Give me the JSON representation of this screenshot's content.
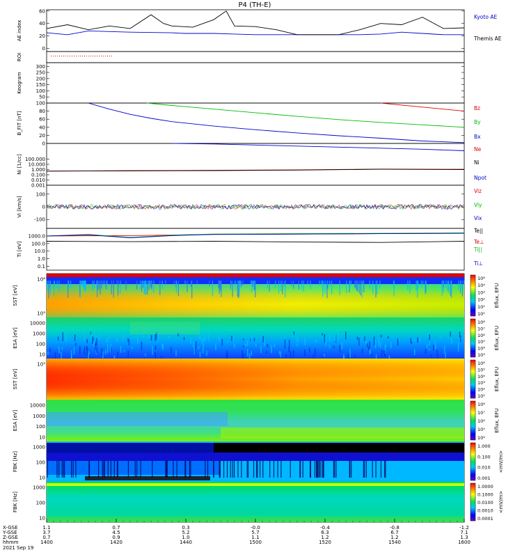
{
  "title": "P4 (TH-E)",
  "colors": {
    "blue": "#0000cc",
    "green": "#00bb00",
    "red": "#dd0000",
    "black": "#000000"
  },
  "chart_data": [
    {
      "type": "line",
      "panel": "ae",
      "ylabel": "AE index",
      "yticks": [
        "0",
        "20",
        "40",
        "60"
      ],
      "ylim": [
        -5,
        62
      ],
      "series": [
        {
          "name": "Kyoto AE",
          "color": "#0000cc",
          "x": [
            0,
            0.05,
            0.1,
            0.15,
            0.2,
            0.3,
            0.33,
            0.4,
            0.45,
            0.5,
            0.55,
            0.6,
            0.65,
            0.7,
            0.75,
            0.8,
            0.85,
            0.9,
            0.95,
            1.0
          ],
          "values": [
            25,
            22,
            28,
            27,
            26,
            25,
            24,
            24,
            23,
            22,
            22,
            22,
            22,
            22,
            22,
            23,
            26,
            24,
            22,
            22
          ]
        },
        {
          "name": "Themis AE",
          "color": "#000000",
          "x": [
            0,
            0.05,
            0.1,
            0.15,
            0.2,
            0.25,
            0.28,
            0.3,
            0.35,
            0.4,
            0.43,
            0.45,
            0.5,
            0.55,
            0.6,
            0.65,
            0.7,
            0.75,
            0.8,
            0.85,
            0.9,
            0.95,
            1.0
          ],
          "values": [
            32,
            38,
            30,
            36,
            32,
            54,
            40,
            36,
            34,
            46,
            60,
            36,
            35,
            30,
            22,
            22,
            22,
            30,
            40,
            38,
            50,
            32,
            33
          ]
        }
      ]
    },
    {
      "type": "line",
      "panel": "roi",
      "ylabel": "ROI",
      "yticks": [],
      "series": []
    },
    {
      "type": "heatmap",
      "panel": "keogram",
      "ylabel": "Keogram",
      "yticks": [
        "50",
        "100",
        "150",
        "200",
        "250",
        "300"
      ]
    },
    {
      "type": "line",
      "panel": "bfield",
      "ylabel": "B_FIT [nT]",
      "yticks": [
        "0",
        "20",
        "40",
        "60",
        "80",
        "100"
      ],
      "ylim": [
        0,
        100
      ],
      "series": [
        {
          "name": "Bz",
          "color": "#dd0000",
          "x": [
            0.8,
            0.85,
            0.9,
            0.95,
            1.0
          ],
          "values": [
            100,
            95,
            90,
            85,
            80
          ]
        },
        {
          "name": "By",
          "color": "#00bb00",
          "x": [
            0.24,
            0.3,
            0.4,
            0.5,
            0.6,
            0.7,
            0.8,
            0.9,
            1.0
          ],
          "values": [
            100,
            94,
            85,
            76,
            67,
            59,
            52,
            46,
            40
          ]
        },
        {
          "name": "Bx",
          "color": "#0000cc",
          "x": [
            0.1,
            0.15,
            0.2,
            0.25,
            0.3,
            0.4,
            0.5,
            0.6,
            0.7,
            0.8,
            0.9,
            1.0
          ],
          "values": [
            100,
            85,
            72,
            62,
            54,
            43,
            34,
            26,
            19,
            13,
            6,
            2
          ]
        }
      ]
    },
    {
      "type": "line",
      "panel": "density",
      "ylabel": "Ni [1/cc]",
      "yticks": [
        "0.001",
        "0.010",
        "0.100",
        "1.000",
        "10.000",
        "100.000"
      ],
      "ylim_log": [
        -3,
        5
      ],
      "series": [
        {
          "name": "Ne",
          "color": "#dd0000",
          "x": [
            0,
            0.2,
            0.4,
            0.6,
            0.8,
            1.0
          ],
          "log_values": [
            -0.3,
            -0.2,
            -0.15,
            -0.05,
            0.1,
            0.05
          ]
        },
        {
          "name": "Ni",
          "color": "#000000",
          "x": [
            0,
            0.2,
            0.4,
            0.6,
            0.8,
            1.0
          ],
          "log_values": [
            -0.3,
            -0.25,
            -0.2,
            -0.1,
            0.05,
            0.0
          ]
        },
        {
          "name": "Npot",
          "color": "#0000cc",
          "x": [
            0.3,
            0.4,
            0.5,
            0.6,
            0.7,
            0.8,
            0.9,
            1.0
          ],
          "log_values": [
            5.0,
            4.9,
            4.7,
            4.5,
            4.3,
            4.1,
            3.9,
            3.6
          ]
        }
      ]
    },
    {
      "type": "line",
      "panel": "velocity",
      "ylabel": "Vi [km/s]",
      "yticks": [
        "-100",
        "0",
        "100"
      ],
      "ylim": [
        -170,
        170
      ],
      "series": [
        {
          "name": "Viz",
          "color": "#dd0000",
          "x": [
            0,
            1
          ],
          "values": [
            0,
            0
          ]
        },
        {
          "name": "Viy",
          "color": "#00bb00",
          "x": [
            0,
            1
          ],
          "values": [
            0,
            0
          ]
        },
        {
          "name": "Vix",
          "color": "#0000cc",
          "x": [
            0,
            1
          ],
          "values": [
            0,
            0
          ]
        }
      ]
    },
    {
      "type": "line",
      "panel": "temperature",
      "ylabel": "Ti [eV]",
      "yticks": [
        "0.1",
        "1.0",
        "10.0",
        "100.0",
        "1000.0"
      ],
      "ylim_log": [
        -1.5,
        4
      ],
      "series": [
        {
          "name": "Te||",
          "color": "#000000",
          "x": [
            0,
            0.2,
            0.4,
            0.6,
            0.8,
            1.0
          ],
          "log_values": [
            2.3,
            2.25,
            2.3,
            2.2,
            2.15,
            2.3
          ]
        },
        {
          "name": "Te⊥",
          "color": "#dd0000",
          "x": [
            0,
            0.2,
            0.4,
            0.6,
            0.8,
            1.0
          ],
          "log_values": [
            3.0,
            3.05,
            3.2,
            3.25,
            3.3,
            3.35
          ]
        },
        {
          "name": "Ti||",
          "color": "#00bb00",
          "x": [
            0,
            0.1,
            0.2,
            0.3,
            0.4,
            0.6,
            0.8,
            1.0
          ],
          "log_values": [
            3.0,
            3.2,
            2.8,
            3.1,
            3.25,
            3.3,
            3.35,
            3.4
          ]
        },
        {
          "name": "Ti⊥",
          "color": "#0000cc",
          "x": [
            0,
            0.1,
            0.2,
            0.3,
            0.4,
            0.6,
            0.8,
            1.0
          ],
          "log_values": [
            3.0,
            3.15,
            2.75,
            3.05,
            3.2,
            3.25,
            3.3,
            3.35
          ]
        }
      ]
    },
    {
      "type": "heatmap",
      "panel": "sst_ion",
      "ylabel": "SST [eV]",
      "yticks": [
        "10⁶",
        "10⁵"
      ],
      "colorbar_label": "Eflux, EFU",
      "colorbar_ticks": [
        "10⁸",
        "10⁴",
        "10³",
        "10²",
        "10¹",
        "10⁰"
      ]
    },
    {
      "type": "heatmap",
      "panel": "esa_ion",
      "ylabel": "ESA [eV]",
      "yticks": [
        "10000",
        "1000",
        "100",
        "10"
      ],
      "colorbar_label": "Eflux, EFU",
      "colorbar_ticks": [
        "10⁸",
        "10⁷",
        "10⁶",
        "10⁵",
        "10⁴",
        "10³"
      ]
    },
    {
      "type": "heatmap",
      "panel": "sst_elec",
      "ylabel": "SST [eV]",
      "yticks": [
        "10⁵"
      ],
      "colorbar_label": "Eflux, EFU",
      "colorbar_ticks": [
        "10⁸",
        "10⁵",
        "10⁴",
        "10³",
        "10²",
        "10¹"
      ]
    },
    {
      "type": "heatmap",
      "panel": "esa_elec",
      "ylabel": "ESA [eV]",
      "yticks": [
        "10000",
        "1000",
        "100",
        "10"
      ],
      "colorbar_label": "Eflux, EFU",
      "colorbar_ticks": [
        "10⁸",
        "10⁷",
        "10⁶",
        "10⁵",
        "10⁴"
      ]
    },
    {
      "type": "heatmap",
      "panel": "fbk_e",
      "ylabel": "FBK [Hz]",
      "yticks": [
        "1000",
        "100",
        "10"
      ],
      "colorbar_label": "<mV/m>",
      "colorbar_ticks": [
        "1.000",
        "0.100",
        "0.010",
        "0.001"
      ]
    },
    {
      "type": "heatmap",
      "panel": "fbk_b",
      "ylabel": "FBK [Hz]",
      "yticks": [
        "1000",
        "100",
        "10"
      ],
      "colorbar_label": "<mV/m>",
      "colorbar_ticks": [
        "1.0000",
        "0.1000",
        "0.0100",
        "0.0010",
        "0.0001"
      ]
    }
  ],
  "xaxis": {
    "row_labels": [
      "X-GSE",
      "Y-GSE",
      "Z-GSE",
      "hhmm",
      "2021 Sep 19"
    ],
    "columns": [
      {
        "x": "1.1",
        "y": "3.7",
        "z": "0.7",
        "t": "1400"
      },
      {
        "x": "0.7",
        "y": "4.5",
        "z": "0.9",
        "t": "1420"
      },
      {
        "x": "0.3",
        "y": "5.2",
        "z": "1.0",
        "t": "1440"
      },
      {
        "x": "-0.0",
        "y": "5.7",
        "z": "1.1",
        "t": "1500"
      },
      {
        "x": "-0.4",
        "y": "6.3",
        "z": "1.2",
        "t": "1520"
      },
      {
        "x": "-0.8",
        "y": "6.7",
        "z": "1.2",
        "t": "1540"
      },
      {
        "x": "-1.2",
        "y": "7.1",
        "z": "1.3",
        "t": "1600"
      }
    ]
  }
}
